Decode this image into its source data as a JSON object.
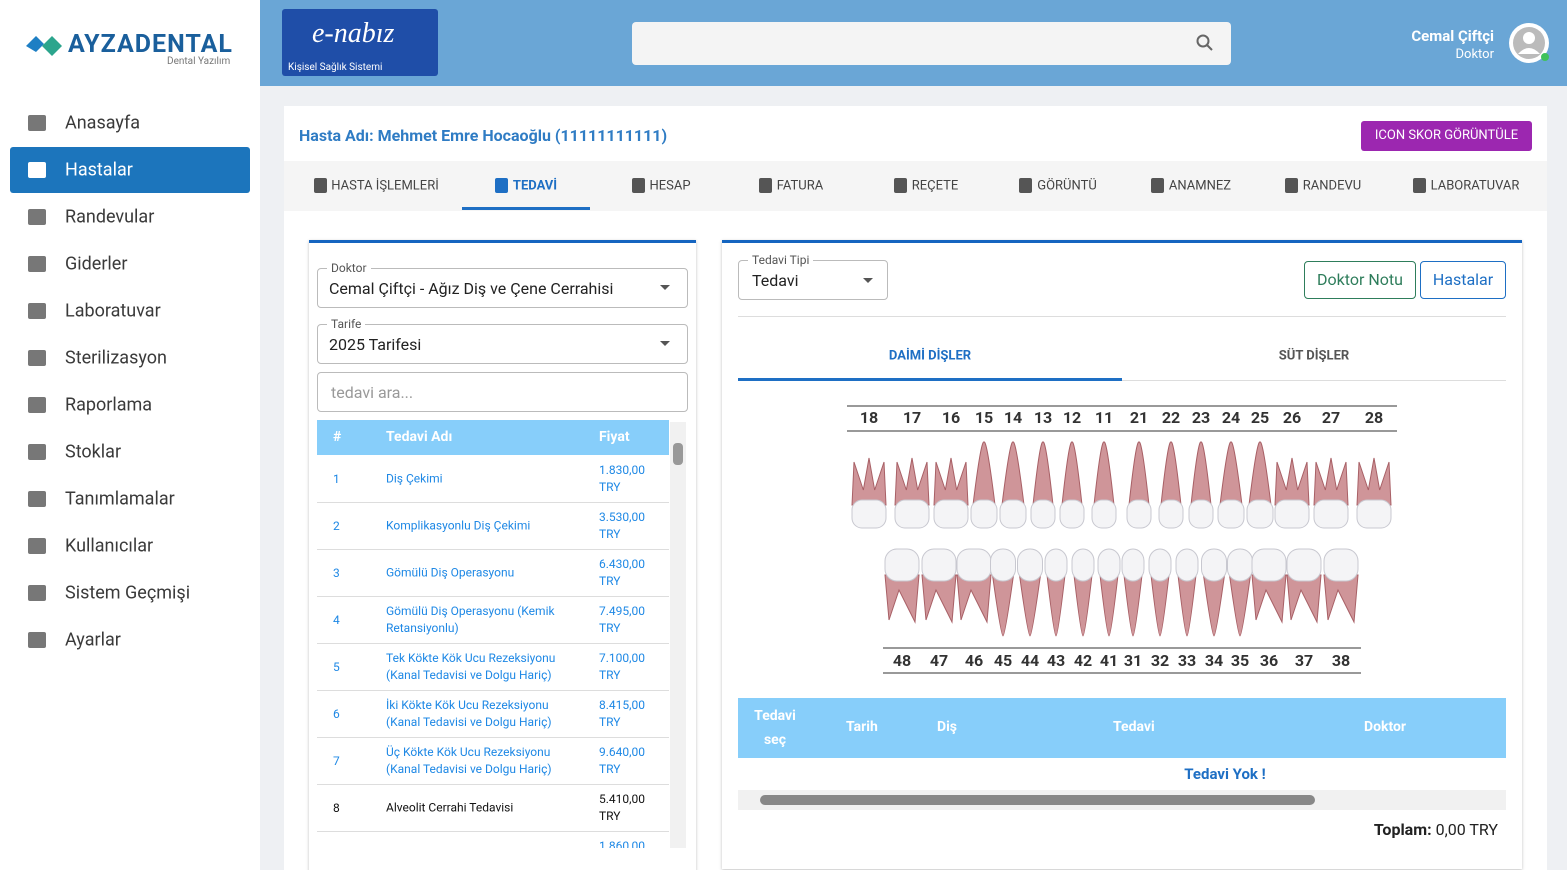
{
  "brand": {
    "name": "AYZADENTAL",
    "tagline": "Dental Yazılım"
  },
  "nav": {
    "items": [
      "Anasayfa",
      "Hastalar",
      "Randevular",
      "Giderler",
      "Laboratuvar",
      "Sterilizasyon",
      "Raporlama",
      "Stoklar",
      "Tanımlamalar",
      "Kullanıcılar",
      "Sistem Geçmişi",
      "Ayarlar"
    ],
    "active": 1
  },
  "enabiz": {
    "logo": "e-nabız",
    "subtitle": "Kişisel Sağlık Sistemi"
  },
  "user": {
    "name": "Cemal Çiftçi",
    "role": "Doktor"
  },
  "patient": {
    "title": "Hasta Adı: Mehmet Emre Hocaoğlu (11111111111)",
    "score_button": "ICON SKOR GÖRÜNTÜLE"
  },
  "tabs": {
    "items": [
      "HASTA İŞLEMLERİ",
      "TEDAVİ",
      "HESAP",
      "FATURA",
      "REÇETE",
      "GÖRÜNTÜ",
      "ANAMNEZ",
      "RANDEVU",
      "LABORATUVAR"
    ],
    "active": 1
  },
  "left": {
    "doctor_label": "Doktor",
    "doctor": "Cemal Çiftçi - Ağız Diş ve Çene  Cerrahisi",
    "tariff_label": "Tarife",
    "tariff": "2025 Tarifesi",
    "search_placeholder": "tedavi ara...",
    "headers": [
      "#",
      "Tedavi Adı",
      "Fiyat"
    ],
    "rows": [
      {
        "num": "1",
        "name": "Diş Çekimi",
        "price": "1.830,00 TRY"
      },
      {
        "num": "2",
        "name": "Komplikasyonlu Diş Çekimi",
        "price": "3.530,00 TRY"
      },
      {
        "num": "3",
        "name": "Gömülü Diş Operasyonu",
        "price": "6.430,00 TRY"
      },
      {
        "num": "4",
        "name": "Gömülü Diş Operasyonu (Kemik Retansiyonlu)",
        "price": "7.495,00 TRY"
      },
      {
        "num": "5",
        "name": "Tek Kökte Kök Ucu Rezeksiyonu (Kanal Tedavisi ve Dolgu Hariç)",
        "price": "7.100,00 TRY"
      },
      {
        "num": "6",
        "name": "İki Kökte Kök Ucu Rezeksiyonu (Kanal Tedavisi ve Dolgu Hariç)",
        "price": "8.415,00 TRY"
      },
      {
        "num": "7",
        "name": "Üç Kökte Kök Ucu Rezeksiyonu (Kanal Tedavisi ve Dolgu Hariç)",
        "price": "9.640,00 TRY"
      },
      {
        "num": "8",
        "name": "Alveolit Cerrahi Tedavisi",
        "price": "5.410,00 TRY"
      },
      {
        "price": "1.860,00"
      }
    ]
  },
  "right": {
    "type_label": "Tedavi Tipi",
    "type": "Tedavi",
    "buttons": [
      "Doktor Notu",
      "Hastalar"
    ],
    "tooth_tabs": [
      "DAİMİ DİŞLER",
      "SÜT DİŞLER"
    ],
    "upper": [
      18,
      17,
      16,
      15,
      14,
      13,
      12,
      11,
      21,
      22,
      23,
      24,
      25,
      26,
      27,
      28
    ],
    "lower": [
      48,
      47,
      46,
      45,
      44,
      43,
      42,
      41,
      31,
      32,
      33,
      34,
      35,
      36,
      37,
      38
    ],
    "headers": [
      "Tedavi seç",
      "Tarih",
      "Diş",
      "Tedavi",
      "Doktor"
    ],
    "empty": "Tedavi Yok !",
    "total_label": "Toplam:",
    "total": "0,00 TRY"
  }
}
